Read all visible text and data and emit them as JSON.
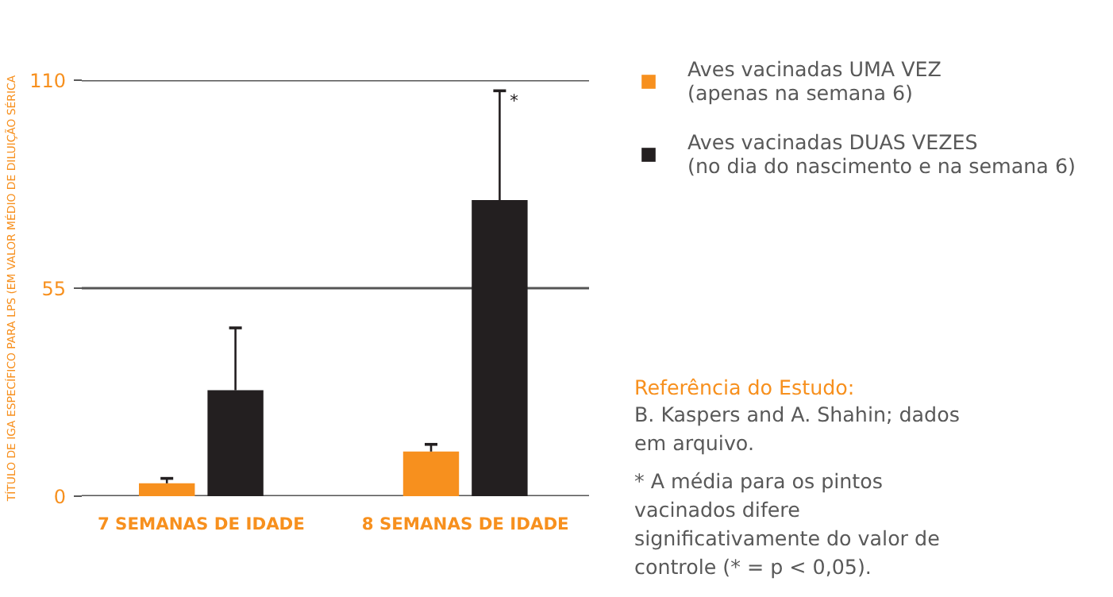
{
  "chart_data": {
    "type": "bar",
    "ylabel": "TÍTULO DE IGA ESPECÍFICO PARA LPS (EM VALOR MÉDIO DE DILUIÇÃO SÉRICA",
    "categories": [
      "7 SEMANAS DE IDADE",
      "8 SEMANAS DE IDADE"
    ],
    "series": [
      {
        "name": "Aves vacinadas UMA VEZ (apenas na semana 6)",
        "color": "#f7901e",
        "values": [
          3.4,
          11.8
        ],
        "errors": [
          [
            3.4,
            4.7
          ],
          [
            11.8,
            13.7
          ]
        ]
      },
      {
        "name": "Aves vacinadas DUAS VEZES (no dia do nascimento e na semana 6)",
        "color": "#231f20",
        "values": [
          28.0,
          78.3
        ],
        "errors": [
          [
            28.0,
            44.5
          ],
          [
            78.3,
            107.2
          ]
        ]
      }
    ],
    "ylim": [
      0,
      110
    ],
    "yticks": [
      0,
      55,
      110
    ],
    "grid": "y",
    "legend": "top right",
    "annotations": [
      "*",
      "Referência do Estudo:",
      "B. Kaspers and A. Shahin; dados em arquivo.",
      "* A média para os pintos vacinados difere significativamente do valor de controle (* = p < 0,05)."
    ]
  }
}
